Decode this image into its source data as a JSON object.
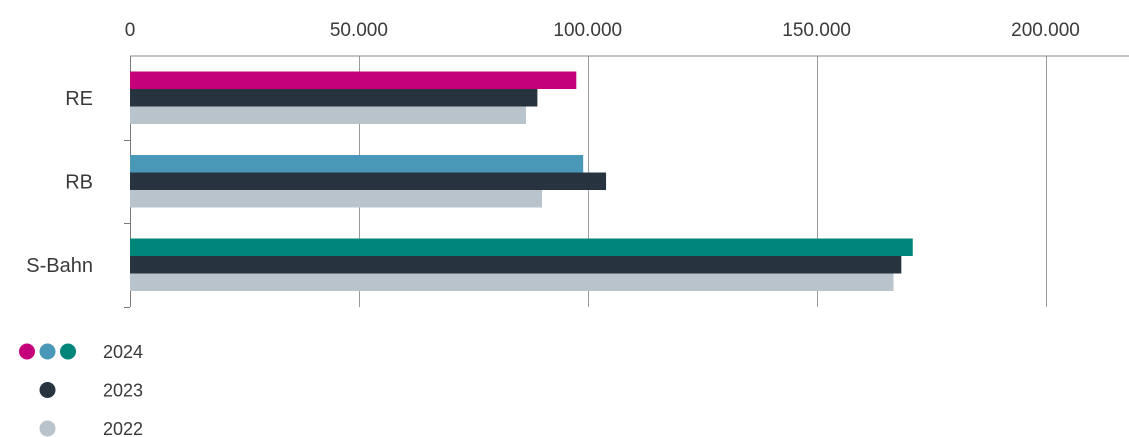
{
  "chart_data": {
    "type": "bar",
    "orientation": "horizontal",
    "title": "",
    "xlabel": "",
    "ylabel": "",
    "categories": [
      "RE",
      "RB",
      "S-Bahn"
    ],
    "series": [
      {
        "name": "2024",
        "values": [
          97500,
          99000,
          171000
        ],
        "colors": [
          "#c4007a",
          "#4a98b8",
          "#00857a"
        ]
      },
      {
        "name": "2023",
        "values": [
          89000,
          104000,
          168500
        ],
        "color": "#27343f"
      },
      {
        "name": "2022",
        "values": [
          86500,
          90000,
          166800
        ],
        "color": "#b9c3cb"
      }
    ],
    "xlim": [
      0,
      216000
    ],
    "xticks": [
      0,
      50000,
      100000,
      150000,
      200000
    ],
    "xtick_labels": [
      "0",
      "50.000",
      "100.000",
      "150.000",
      "200.000"
    ],
    "grid": true,
    "legend_position": "bottom-left",
    "legend": [
      {
        "label": "2024",
        "dot_colors": [
          "#c4007a",
          "#4a98b8",
          "#00857a"
        ]
      },
      {
        "label": "2023",
        "dot_colors": [
          "#27343f"
        ]
      },
      {
        "label": "2022",
        "dot_colors": [
          "#b9c3cb"
        ]
      }
    ]
  }
}
